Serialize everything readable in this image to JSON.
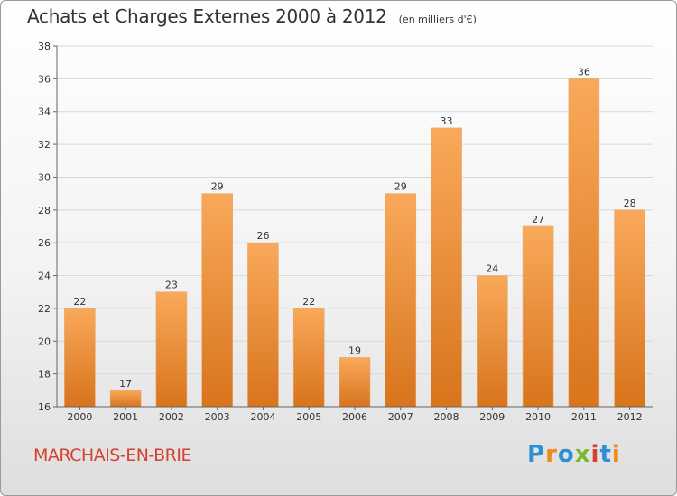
{
  "header": {
    "title": "Achats et Charges Externes 2000 à 2012",
    "unit": "(en milliers d'€)"
  },
  "footer": {
    "commune": "MARCHAIS-EN-BRIE",
    "brand_letters": [
      "P",
      "r",
      "o",
      "x",
      "i",
      "t",
      "i"
    ],
    "brand_colors": [
      "#2f8fd6",
      "#f08a1d",
      "#2f8fd6",
      "#7ab929",
      "#d6402e",
      "#2f8fd6",
      "#f08a1d"
    ]
  },
  "chart_data": {
    "type": "bar",
    "title": "Achats et Charges Externes 2000 à 2012",
    "subtitle": "(en milliers d'€)",
    "categories": [
      "2000",
      "2001",
      "2002",
      "2003",
      "2004",
      "2005",
      "2006",
      "2007",
      "2008",
      "2009",
      "2010",
      "2011",
      "2012"
    ],
    "values": [
      22,
      17,
      23,
      29,
      26,
      22,
      19,
      29,
      33,
      24,
      27,
      36,
      28
    ],
    "ylim": [
      16,
      38
    ],
    "yticks": [
      16,
      18,
      20,
      22,
      24,
      26,
      28,
      30,
      32,
      34,
      36,
      38
    ],
    "grid": true,
    "colors": {
      "bar_top": "#f9a95a",
      "bar_bottom": "#d8741c",
      "grid": "#d8d8d8"
    }
  }
}
